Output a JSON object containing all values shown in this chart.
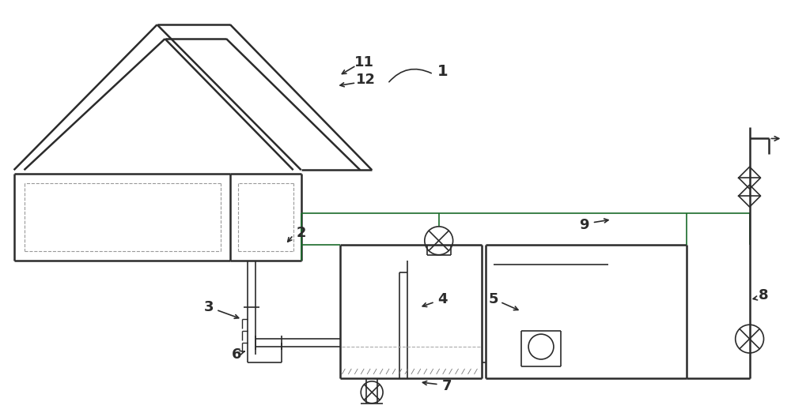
{
  "bg_color": "#ffffff",
  "line_color": "#2b2b2b",
  "green_color": "#1a6b2a",
  "fig_width": 10.0,
  "fig_height": 5.23,
  "dpi": 100
}
